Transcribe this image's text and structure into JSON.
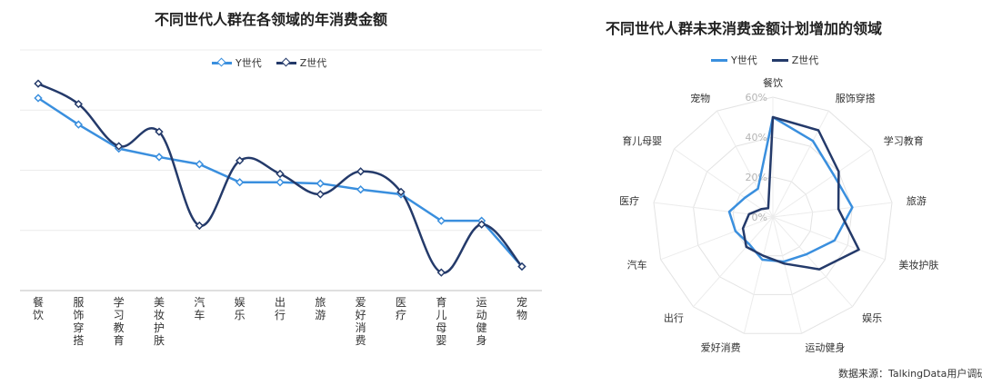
{
  "chart_data": [
    {
      "type": "line",
      "title": "不同世代人群在各领域的年消费金额",
      "categories": [
        "餐饮",
        "服饰穿搭",
        "学习教育",
        "美妆护肤",
        "汽车",
        "娱乐",
        "出行",
        "旅游",
        "爱好消费",
        "医疗",
        "育儿母婴",
        "运动健身",
        "宠物"
      ],
      "series": [
        {
          "name": "Y世代",
          "color": "#3a8fde",
          "values": [
            160,
            138,
            118,
            111,
            105,
            90,
            90,
            89,
            84,
            80,
            58,
            58,
            20
          ]
        },
        {
          "name": "Z世代",
          "color": "#243a6a",
          "values": [
            172,
            155,
            120,
            132,
            54,
            108,
            97,
            80,
            99,
            82,
            15,
            55,
            20
          ]
        }
      ],
      "ylim": [
        0,
        200
      ],
      "grid": true,
      "legend": "top"
    },
    {
      "type": "radar",
      "title": "不同世代人群未来消费金额计划增加的领域",
      "categories": [
        "餐饮",
        "服饰穿搭",
        "学习教育",
        "旅游",
        "美妆护肤",
        "娱乐",
        "运动健身",
        "爱好消费",
        "出行",
        "汽车",
        "医疗",
        "育儿母婴",
        "宠物"
      ],
      "rlim": [
        0,
        60
      ],
      "rticks": [
        "0%",
        "20%",
        "40%",
        "60%"
      ],
      "series": [
        {
          "name": "Y世代",
          "color": "#3a8fde",
          "values": [
            50,
            43,
            37,
            40,
            33,
            25,
            23,
            22,
            18,
            20,
            22,
            17,
            16
          ]
        },
        {
          "name": "Z世代",
          "color": "#243a6a",
          "values": [
            50,
            49,
            40,
            33,
            46,
            35,
            24,
            20,
            20,
            16,
            12,
            7,
            5
          ]
        }
      ],
      "legend": "top"
    }
  ],
  "source": "数据来源：TalkingData用户调研"
}
